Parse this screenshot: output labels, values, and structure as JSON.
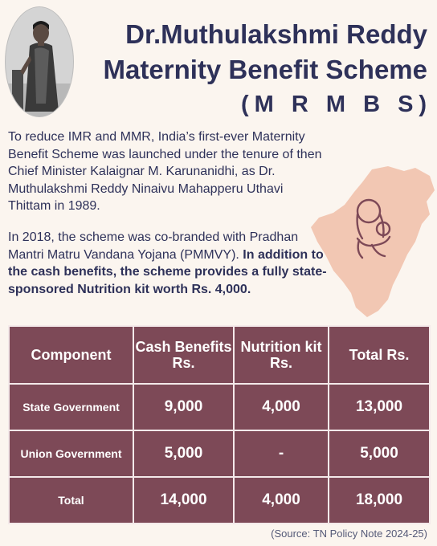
{
  "header": {
    "title_line1": "Dr.Muthulakshmi Reddy",
    "title_line2": "Maternity Benefit Scheme",
    "acronym": "(M R M B S)"
  },
  "intro": {
    "paragraph1": "To reduce IMR and MMR, India’s first-ever Maternity Benefit Scheme was launched under the tenure of then Chief Minister Kalaignar M. Karunanidhi, as Dr. Muthulakshmi Reddy Ninaivu Mahapperu Uthavi Thittam in 1989.",
    "paragraph2_plain": "In 2018, the scheme was co-branded with Pradhan Mantri Matru Vandana Yojana (PMMVY). ",
    "paragraph2_bold": "In addition to the cash benefits, the scheme provides a fully state-sponsored Nutrition kit worth Rs. 4,000."
  },
  "table": {
    "headers": [
      "Component",
      "Cash Benefits Rs.",
      "Nutrition kit Rs.",
      "Total Rs."
    ],
    "rows": [
      [
        "State Government",
        "9,000",
        "4,000",
        "13,000"
      ],
      [
        "Union Government",
        "5,000",
        "-",
        "5,000"
      ],
      [
        "Total",
        "14,000",
        "4,000",
        "18,000"
      ]
    ]
  },
  "source": "(Source: TN Policy Note 2024-25)",
  "colors": {
    "title": "#2e3159",
    "table_bg": "#7d4957",
    "map": "#f2c7b3",
    "background": "#fbf5ef"
  },
  "icons": [
    "portrait-photo",
    "tamil-nadu-map-icon",
    "mother-child-icon"
  ]
}
